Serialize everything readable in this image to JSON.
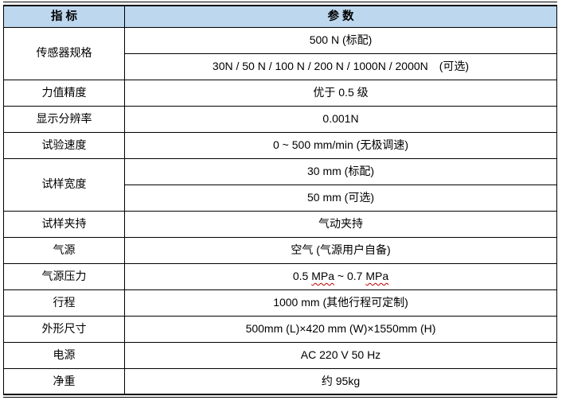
{
  "colors": {
    "header_bg": "#BDD7EE",
    "border": "#000000",
    "spellcheck_underline": "#C00000",
    "text": "#000000"
  },
  "table": {
    "columns": [
      {
        "label": "指 标"
      },
      {
        "label": "参 数"
      }
    ],
    "rows": [
      {
        "label": "传感器规格",
        "values": [
          "500 N (标配)",
          "30N / 50 N / 100 N / 200 N / 1000N / 2000N　(可选)"
        ]
      },
      {
        "label": "力值精度",
        "values": [
          "优于 0.5 级"
        ]
      },
      {
        "label": "显示分辨率",
        "values": [
          "0.001N"
        ]
      },
      {
        "label": "试验速度",
        "values": [
          "0 ~ 500 mm/min (无极调速)"
        ]
      },
      {
        "label": "试样宽度",
        "values": [
          "30 mm (标配)",
          "50 mm (可选)"
        ]
      },
      {
        "label": "试样夹持",
        "values": [
          "气动夹持"
        ]
      },
      {
        "label": "气源",
        "values": [
          "空气 (气源用户自备)"
        ]
      },
      {
        "label": "气源压力",
        "value_parts": [
          "0.5 ",
          "MPa",
          " ~ 0.7 ",
          "MPa"
        ],
        "spellchecked_part_indexes": [
          1,
          3
        ]
      },
      {
        "label": "行程",
        "values": [
          "1000 mm (其他行程可定制)"
        ]
      },
      {
        "label": "外形尺寸",
        "values": [
          "500mm (L)×420 mm (W)×1550mm (H)"
        ]
      },
      {
        "label": "电源",
        "values": [
          "AC 220 V 50 Hz"
        ]
      },
      {
        "label": "净重",
        "values": [
          "约 95kg"
        ]
      }
    ]
  }
}
